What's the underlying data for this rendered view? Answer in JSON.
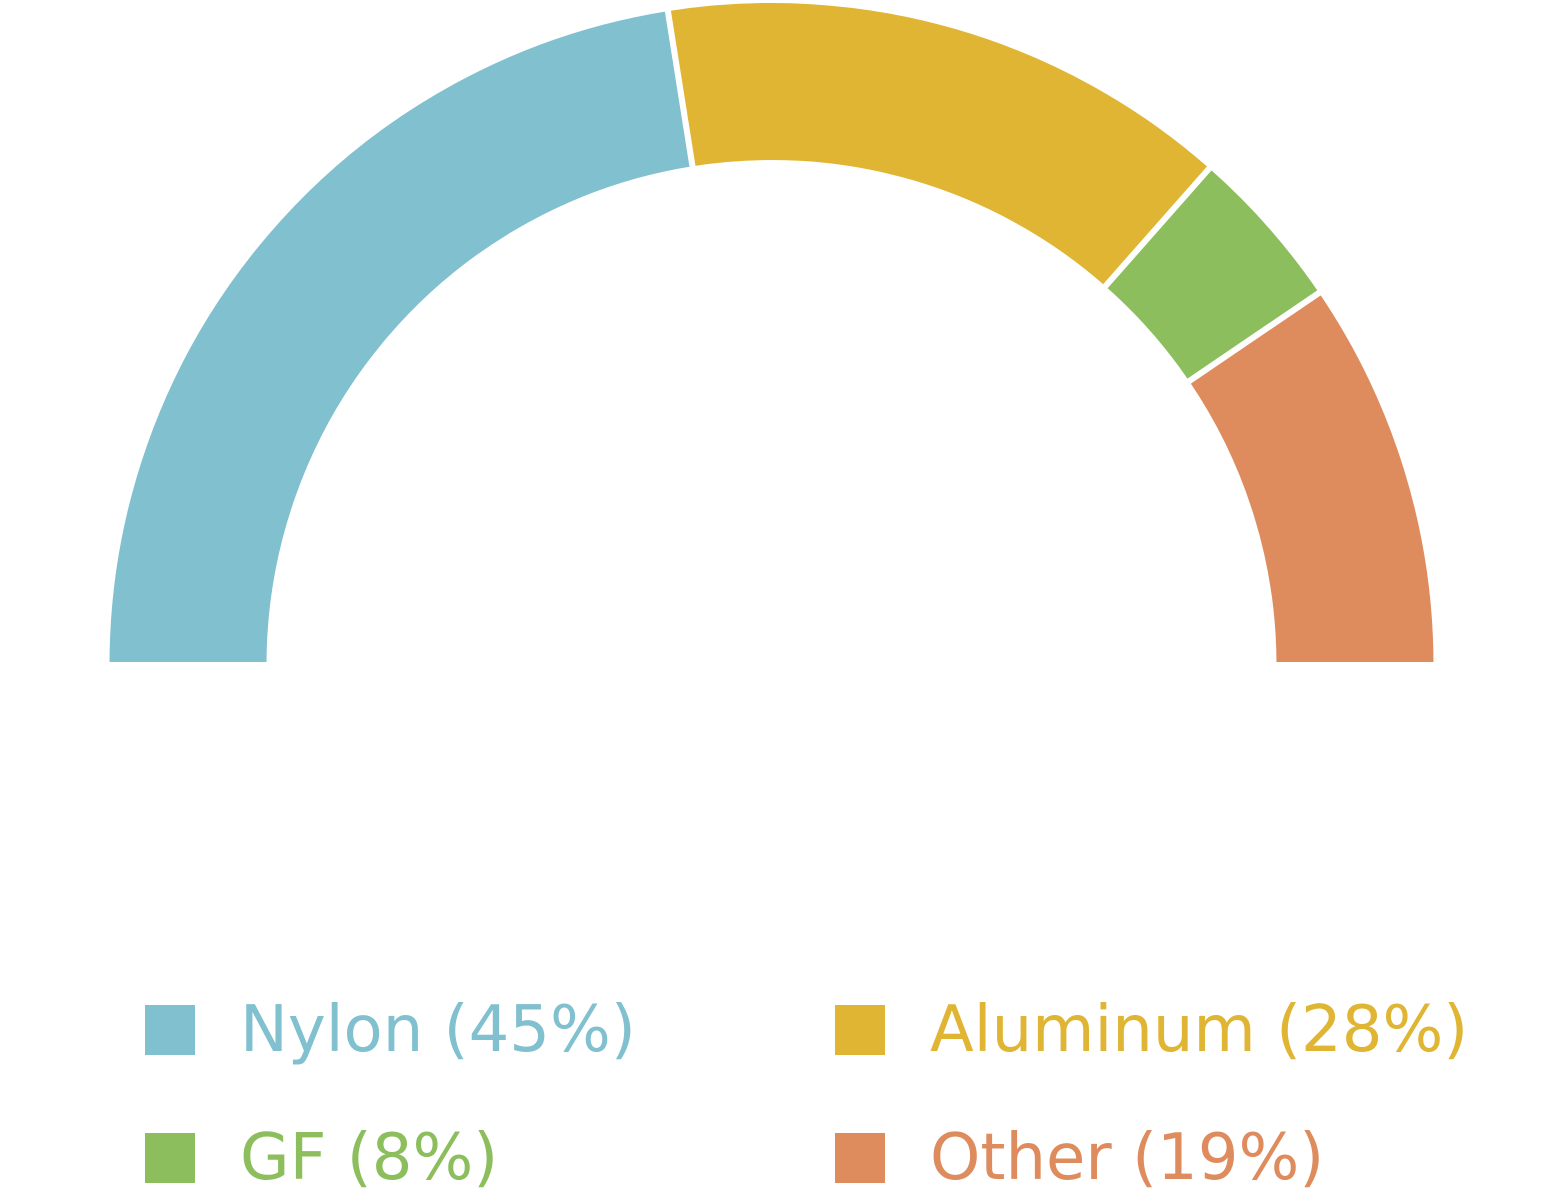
{
  "chart_data": {
    "type": "pie",
    "subtype": "half-donut",
    "title": "",
    "legend_placement": "bottom",
    "series": [
      {
        "name": "Nylon",
        "value": 45,
        "label": "Nylon (45%)",
        "color": "#80C0CF"
      },
      {
        "name": "Aluminum",
        "value": 28,
        "label": "Aluminum (28%)",
        "color": "#DFB533"
      },
      {
        "name": "GF",
        "value": 8,
        "label": "GF (8%)",
        "color": "#8DBE5D"
      },
      {
        "name": "Other",
        "value": 19,
        "label": "Other (19%)",
        "color": "#DE8C5E"
      }
    ]
  }
}
